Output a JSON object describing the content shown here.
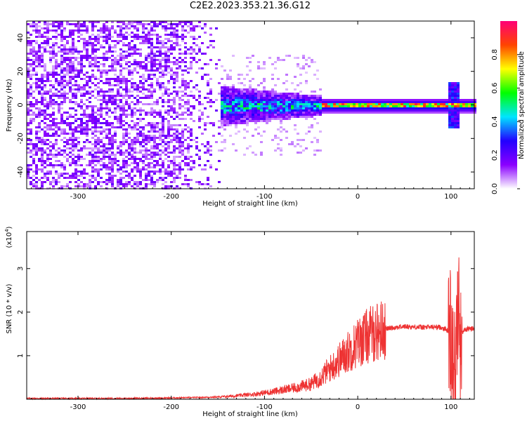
{
  "title": "C2E2.2023.353.21.36.G12",
  "chart_data": [
    {
      "type": "heatmap",
      "name": "spectrogram",
      "xlabel": "Height of straight line (km)",
      "ylabel": "Frequency (Hz)",
      "xlim": [
        -355,
        125
      ],
      "ylim": [
        -50,
        50
      ],
      "xticks": [
        "-300",
        "-200",
        "-100",
        "0",
        "100"
      ],
      "xtick_values": [
        -300,
        -200,
        -100,
        0,
        100
      ],
      "yticks": [
        "-40",
        "-20",
        "0",
        "20",
        "40"
      ],
      "ytick_values": [
        -40,
        -20,
        0,
        20,
        40
      ],
      "colorbar": {
        "label": "Normalized spectral amplitude",
        "range": [
          0.0,
          1.0
        ],
        "ticks": [
          "0.0",
          "0.2",
          "0.4",
          "0.6",
          "0.8"
        ],
        "tick_values": [
          0.0,
          0.2,
          0.4,
          0.6,
          0.8
        ],
        "colormap": [
          "#ffffff",
          "#8a00ff",
          "#2200ff",
          "#00e5ff",
          "#00ff00",
          "#ffff00",
          "#ff4400",
          "#ff0077"
        ]
      },
      "bands": [
        {
          "x_range": [
            -355,
            -150
          ],
          "freq_half_width": 50,
          "amplitude": 0.12
        },
        {
          "x_range": [
            -150,
            -40
          ],
          "freq_half_width": 8,
          "amplitude": 0.3
        },
        {
          "x_range": [
            -40,
            125
          ],
          "freq_half_width": 3,
          "amplitude": 0.85
        }
      ]
    },
    {
      "type": "line",
      "name": "snr",
      "xlabel": "Height of straight line (km)",
      "ylabel": "SNR (10 * v/v)",
      "y_multiplier": "(x10",
      "y_multiplier_exp": "4",
      "y_multiplier_close": ")",
      "xlim": [
        -355,
        125
      ],
      "ylim": [
        0,
        3.85
      ],
      "xticks": [
        "-300",
        "-200",
        "-100",
        "0",
        "100"
      ],
      "xtick_values": [
        -300,
        -200,
        -100,
        0,
        100
      ],
      "yticks": [
        "1",
        "2",
        "3"
      ],
      "ytick_values": [
        1,
        2,
        3
      ],
      "color": "#ee3333",
      "x": [
        -355,
        -300,
        -250,
        -200,
        -150,
        -130,
        -110,
        -90,
        -70,
        -50,
        -40,
        -30,
        -20,
        -10,
        0,
        10,
        20,
        30,
        40,
        50,
        60,
        70,
        80,
        90,
        95,
        100,
        103,
        105,
        107,
        110,
        115,
        120,
        125
      ],
      "y": [
        0.02,
        0.02,
        0.02,
        0.03,
        0.05,
        0.08,
        0.12,
        0.18,
        0.25,
        0.35,
        0.5,
        0.7,
        0.9,
        1.1,
        1.3,
        1.45,
        1.55,
        1.62,
        1.65,
        1.67,
        1.66,
        1.65,
        1.66,
        1.65,
        1.6,
        1.5,
        1.2,
        0.3,
        2.2,
        1.5,
        1.6,
        1.62,
        1.62
      ]
    }
  ]
}
